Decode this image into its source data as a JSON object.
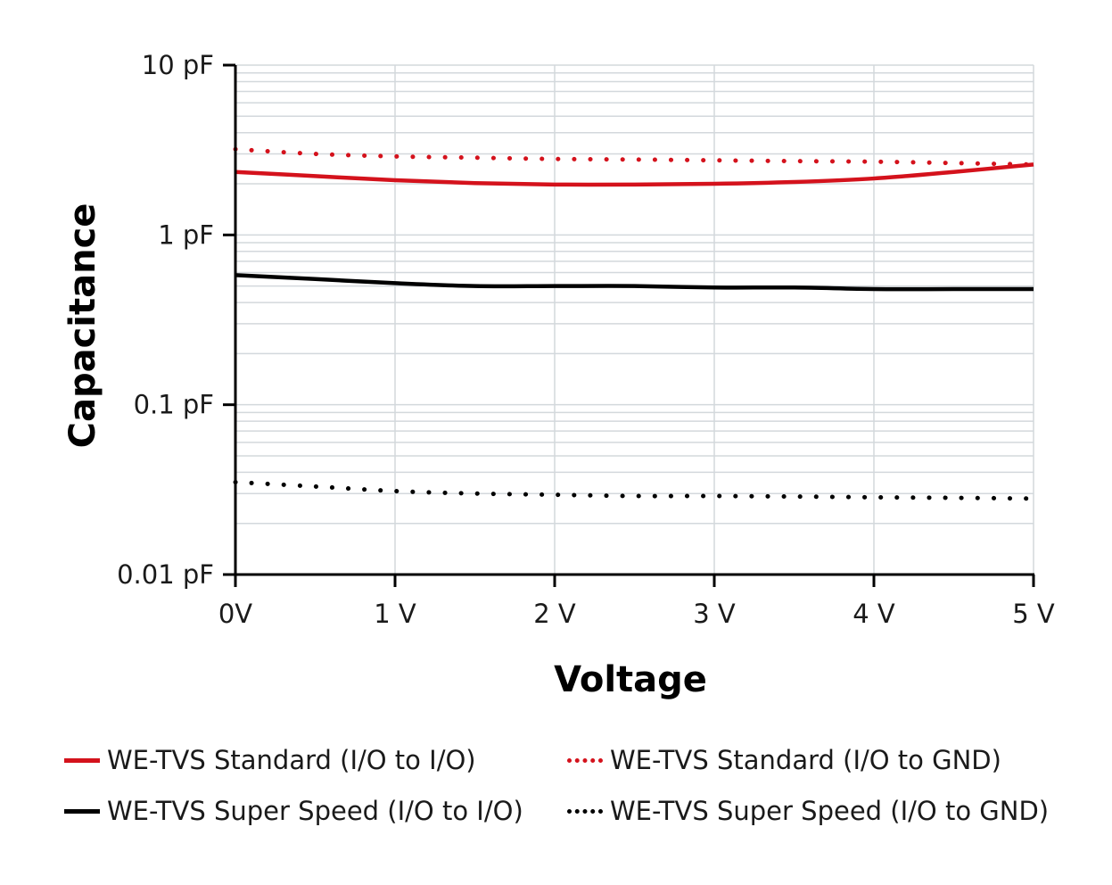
{
  "chart_data": {
    "type": "line",
    "title": "",
    "xlabel": "Voltage",
    "ylabel": "Capacitance",
    "x_tick_labels": [
      "0V",
      "1 V",
      "2 V",
      "3 V",
      "4 V",
      "5 V"
    ],
    "x_ticks": [
      0,
      1,
      2,
      3,
      4,
      5
    ],
    "y_tick_labels": [
      "10 pF",
      "1 pF",
      "0.1 pF",
      "0.01 pF"
    ],
    "y_ticks": [
      10,
      1,
      0.1,
      0.01
    ],
    "xlim": [
      0,
      5
    ],
    "ylim": [
      0.01,
      10
    ],
    "y_scale": "log",
    "grid": true,
    "legend_position": "bottom",
    "series": [
      {
        "name": "WE-TVS Standard (I/O to I/O)",
        "color": "#d4121c",
        "style": "solid",
        "x": [
          0,
          0.5,
          1,
          1.5,
          2,
          2.5,
          3,
          3.5,
          4,
          4.5,
          5
        ],
        "y": [
          2.35,
          2.22,
          2.1,
          2.02,
          1.98,
          1.98,
          2.0,
          2.05,
          2.15,
          2.35,
          2.6
        ]
      },
      {
        "name": "WE-TVS Standard (I/O to GND)",
        "color": "#d4121c",
        "style": "dotted",
        "x": [
          0,
          0.5,
          1,
          1.5,
          2,
          2.5,
          3,
          3.5,
          4,
          4.5,
          5
        ],
        "y": [
          3.2,
          3.0,
          2.9,
          2.85,
          2.8,
          2.78,
          2.75,
          2.72,
          2.7,
          2.65,
          2.6
        ]
      },
      {
        "name": "WE-TVS Super Speed (I/O to I/O)",
        "color": "#000000",
        "style": "solid",
        "x": [
          0,
          0.5,
          1,
          1.5,
          2,
          2.5,
          3,
          3.5,
          4,
          4.5,
          5
        ],
        "y": [
          0.58,
          0.55,
          0.52,
          0.5,
          0.5,
          0.5,
          0.49,
          0.49,
          0.48,
          0.48,
          0.48
        ]
      },
      {
        "name": "WE-TVS Super Speed (I/O to GND)",
        "color": "#000000",
        "style": "dotted",
        "x": [
          0,
          0.5,
          1,
          1.5,
          2,
          2.5,
          3,
          3.5,
          4,
          4.5,
          5
        ],
        "y": [
          0.035,
          0.033,
          0.031,
          0.03,
          0.0295,
          0.029,
          0.029,
          0.0288,
          0.0285,
          0.0283,
          0.028
        ]
      }
    ]
  }
}
